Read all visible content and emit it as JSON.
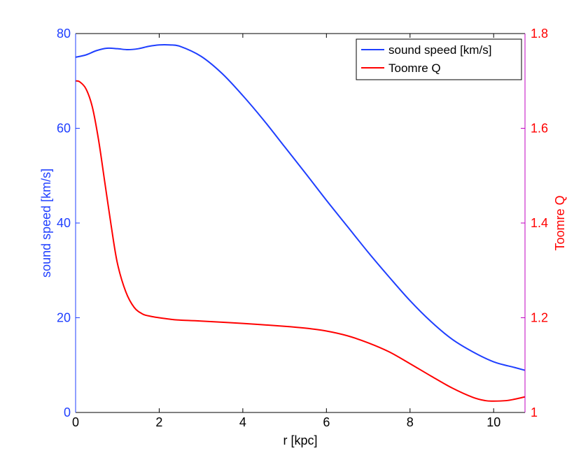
{
  "colors": {
    "left_axis": "#1f3fff",
    "right_axis": "#ff0000",
    "right_axis_line": "#c000c0",
    "sound_speed": "#1f3fff",
    "toomre_q": "#ff0000"
  },
  "chart_data": {
    "type": "line",
    "xlabel": "r [kpc]",
    "ylabel_left": "sound speed [km/s]",
    "ylabel_right": "Toomre Q",
    "xlim": [
      0,
      10.75
    ],
    "ylim_left": [
      0,
      80
    ],
    "ylim_right": [
      1.0,
      1.8
    ],
    "grid": false,
    "legend_position": "top-right",
    "x_ticks": [
      "0",
      "2",
      "4",
      "6",
      "8",
      "10"
    ],
    "y_left_ticks": [
      "0",
      "20",
      "40",
      "60",
      "80"
    ],
    "y_right_ticks": [
      "1",
      "1.2",
      "1.4",
      "1.6",
      "1.8"
    ],
    "series": [
      {
        "name": "sound speed [km/s]",
        "axis": "left",
        "x": [
          0,
          0.25,
          0.5,
          0.75,
          1.0,
          1.25,
          1.5,
          1.75,
          2.0,
          2.25,
          2.5,
          3.0,
          3.5,
          4.0,
          4.5,
          5.0,
          5.5,
          6.0,
          6.5,
          7.0,
          7.5,
          8.0,
          8.5,
          9.0,
          9.5,
          10.0,
          10.5,
          10.75
        ],
        "y": [
          75.0,
          75.5,
          76.4,
          76.9,
          76.8,
          76.6,
          76.8,
          77.3,
          77.6,
          77.6,
          77.3,
          75.2,
          71.6,
          66.9,
          61.7,
          56.1,
          50.5,
          44.8,
          39.3,
          33.8,
          28.6,
          23.6,
          19.2,
          15.5,
          12.8,
          10.7,
          9.5,
          8.9
        ]
      },
      {
        "name": "Toomre Q",
        "axis": "right",
        "x": [
          0,
          0.1,
          0.25,
          0.4,
          0.55,
          0.7,
          0.85,
          1.0,
          1.2,
          1.4,
          1.6,
          1.8,
          2.0,
          2.25,
          2.5,
          3.0,
          4.0,
          5.0,
          5.5,
          6.0,
          6.5,
          7.0,
          7.5,
          8.0,
          8.5,
          9.0,
          9.5,
          9.8,
          10.0,
          10.3,
          10.5,
          10.75
        ],
        "y": [
          1.7,
          1.698,
          1.683,
          1.645,
          1.575,
          1.485,
          1.395,
          1.315,
          1.255,
          1.222,
          1.208,
          1.203,
          1.2,
          1.197,
          1.195,
          1.193,
          1.188,
          1.182,
          1.178,
          1.172,
          1.162,
          1.147,
          1.128,
          1.103,
          1.077,
          1.052,
          1.032,
          1.025,
          1.024,
          1.025,
          1.028,
          1.033
        ]
      }
    ]
  }
}
